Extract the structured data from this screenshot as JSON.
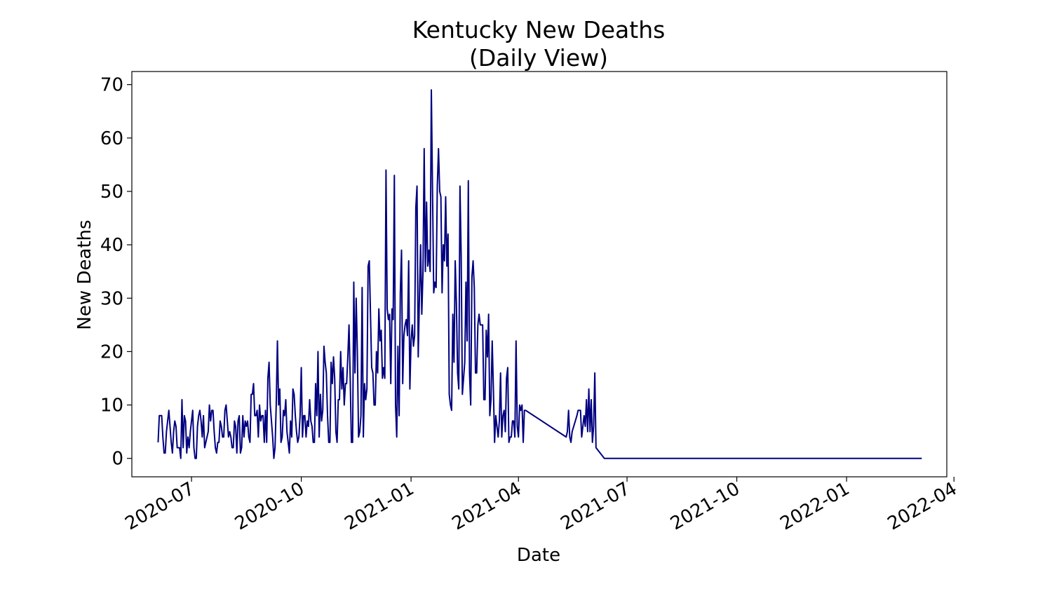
{
  "chart_data": {
    "type": "line",
    "title": [
      "Kentucky New Deaths",
      "(Daily View)"
    ],
    "xlabel": "Date",
    "ylabel": "New Deaths",
    "ylim": [
      -3.45,
      72.45
    ],
    "yticks": [
      0,
      10,
      20,
      30,
      40,
      50,
      60,
      70
    ],
    "xlim": [
      "2020-05-12",
      "2022-03-26"
    ],
    "xticks": [
      "2020-07",
      "2020-10",
      "2021-01",
      "2021-04",
      "2021-07",
      "2021-10",
      "2022-01",
      "2022-04"
    ],
    "grid": false,
    "legend": "none",
    "line_color": "#000080",
    "series": [
      {
        "start_date": "2020-06-03",
        "values": [
          3,
          8,
          8,
          8,
          4,
          1,
          1,
          5,
          7,
          9,
          6,
          3,
          1,
          5,
          7,
          6,
          2,
          2,
          2,
          0,
          11,
          2,
          8,
          7,
          1,
          4,
          2,
          5,
          7,
          9,
          2,
          0,
          0,
          6,
          8,
          9,
          7,
          4,
          8,
          2,
          3,
          4,
          5,
          10,
          7,
          9,
          9,
          5,
          2,
          1,
          3,
          3,
          7,
          6,
          4,
          4,
          9,
          10,
          7,
          4,
          5,
          4,
          2,
          2,
          7,
          6,
          1,
          7,
          8,
          1,
          2,
          8,
          4,
          7,
          6,
          7,
          4,
          3,
          12,
          12,
          14,
          8,
          8,
          9,
          4,
          10,
          7,
          8,
          8,
          3,
          9,
          3,
          15,
          18,
          10,
          7,
          4,
          0,
          2,
          10,
          22,
          10,
          13,
          3,
          4,
          9,
          8,
          11,
          5,
          3,
          1,
          7,
          4,
          13,
          12,
          8,
          5,
          3,
          4,
          8,
          17,
          4,
          8,
          8,
          4,
          7,
          6,
          11,
          7,
          6,
          3,
          3,
          14,
          8,
          20,
          4,
          12,
          7,
          9,
          21,
          18,
          16,
          8,
          3,
          3,
          18,
          14,
          19,
          15,
          5,
          3,
          11,
          11,
          20,
          13,
          17,
          10,
          14,
          14,
          19,
          25,
          15,
          3,
          3,
          33,
          16,
          30,
          20,
          4,
          5,
          8,
          32,
          4,
          14,
          11,
          13,
          36,
          37,
          27,
          17,
          16,
          10,
          10,
          20,
          16,
          28,
          22,
          24,
          15,
          17,
          15,
          54,
          28,
          26,
          27,
          14,
          28,
          26,
          53,
          10,
          4,
          21,
          8,
          31,
          39,
          14,
          23,
          25,
          26,
          23,
          37,
          13,
          22,
          25,
          21,
          23,
          47,
          51,
          19,
          30,
          40,
          27,
          35,
          58,
          35,
          48,
          36,
          39,
          35,
          69,
          50,
          31,
          33,
          32,
          51,
          58,
          50,
          49,
          31,
          40,
          37,
          49,
          36,
          42,
          12,
          10,
          9,
          27,
          18,
          37,
          29,
          16,
          13,
          51,
          38,
          12,
          15,
          18,
          33,
          22,
          52,
          16,
          10,
          34,
          37,
          32,
          16,
          16,
          25,
          27,
          25,
          25,
          25,
          11,
          11,
          24,
          19,
          27,
          8,
          11,
          22,
          13,
          3,
          8,
          6,
          4,
          7,
          16,
          4,
          8,
          9,
          5,
          15,
          17,
          3,
          4,
          4,
          7,
          7,
          4,
          22,
          6,
          4,
          10,
          9,
          10,
          3,
          9,
          9
        ],
        "tail": [
          {
            "date": "2021-05-11",
            "value": 4
          },
          {
            "date": "2021-05-12",
            "value": 5
          },
          {
            "date": "2021-05-13",
            "value": 9
          },
          {
            "date": "2021-05-14",
            "value": 4
          },
          {
            "date": "2021-05-15",
            "value": 3
          },
          {
            "date": "2021-05-16",
            "value": 5
          },
          {
            "date": "2021-05-20",
            "value": 8
          },
          {
            "date": "2021-05-21",
            "value": 9
          },
          {
            "date": "2021-05-22",
            "value": 9
          },
          {
            "date": "2021-05-23",
            "value": 9
          },
          {
            "date": "2021-05-24",
            "value": 4
          },
          {
            "date": "2021-05-25",
            "value": 6
          },
          {
            "date": "2021-05-26",
            "value": 8
          },
          {
            "date": "2021-05-27",
            "value": 6
          },
          {
            "date": "2021-05-28",
            "value": 11
          },
          {
            "date": "2021-05-29",
            "value": 5
          },
          {
            "date": "2021-05-30",
            "value": 13
          },
          {
            "date": "2021-05-31",
            "value": 5
          },
          {
            "date": "2021-06-01",
            "value": 11
          },
          {
            "date": "2021-06-02",
            "value": 3
          },
          {
            "date": "2021-06-03",
            "value": 6
          },
          {
            "date": "2021-06-04",
            "value": 16
          },
          {
            "date": "2021-06-05",
            "value": 2
          },
          {
            "date": "2021-06-12",
            "value": 0
          },
          {
            "date": "2022-03-05",
            "value": 0
          }
        ]
      }
    ]
  }
}
